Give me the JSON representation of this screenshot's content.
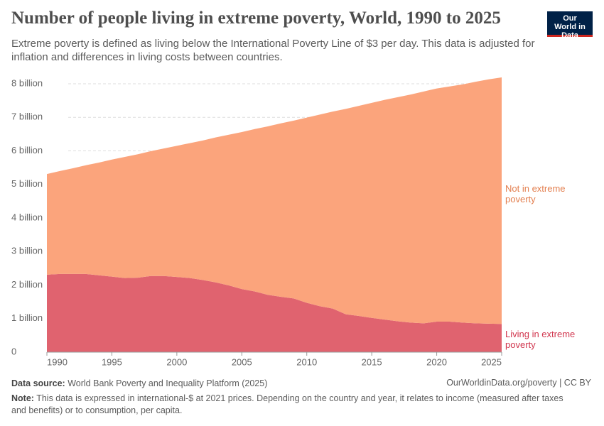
{
  "chart_data": {
    "type": "stacked_area",
    "title": "Number of people living in extreme poverty, World, 1990 to 2025",
    "subtitle": "Extreme poverty is defined as living below the International Poverty Line of $3 per day. This data is adjusted for inflation and differences in living costs between countries.",
    "x": [
      1990,
      1991,
      1992,
      1993,
      1994,
      1995,
      1996,
      1997,
      1998,
      1999,
      2000,
      2001,
      2002,
      2003,
      2004,
      2005,
      2006,
      2007,
      2008,
      2009,
      2010,
      2011,
      2012,
      2013,
      2014,
      2015,
      2016,
      2017,
      2018,
      2019,
      2020,
      2021,
      2022,
      2023,
      2024,
      2025
    ],
    "series": [
      {
        "name": "Living in extreme poverty",
        "color": "#e0636f",
        "label_color": "#d1374f",
        "values": [
          2310000000,
          2330000000,
          2330000000,
          2330000000,
          2290000000,
          2250000000,
          2210000000,
          2220000000,
          2270000000,
          2270000000,
          2240000000,
          2210000000,
          2150000000,
          2080000000,
          1990000000,
          1880000000,
          1810000000,
          1710000000,
          1650000000,
          1600000000,
          1470000000,
          1370000000,
          1300000000,
          1130000000,
          1080000000,
          1020000000,
          970000000,
          920000000,
          880000000,
          860000000,
          910000000,
          910000000,
          880000000,
          860000000,
          850000000,
          840000000
        ]
      },
      {
        "name": "Not in extreme poverty",
        "color": "#fba47c",
        "label_color": "#e37f4f",
        "values": [
          3000000000,
          3070000000,
          3150000000,
          3240000000,
          3360000000,
          3490000000,
          3610000000,
          3680000000,
          3720000000,
          3800000000,
          3910000000,
          4020000000,
          4160000000,
          4320000000,
          4490000000,
          4680000000,
          4840000000,
          5020000000,
          5170000000,
          5300000000,
          5520000000,
          5710000000,
          5870000000,
          6120000000,
          6260000000,
          6410000000,
          6550000000,
          6680000000,
          6800000000,
          6910000000,
          6950000000,
          7010000000,
          7100000000,
          7200000000,
          7280000000,
          7350000000
        ]
      }
    ],
    "xlim": [
      1990,
      2025
    ],
    "xticks": [
      1990,
      1995,
      2000,
      2005,
      2010,
      2015,
      2020,
      2025
    ],
    "ylim": [
      0,
      8200000000
    ],
    "yticks": [
      0,
      {
        "value": 1000000000,
        "label": "1 billion"
      },
      {
        "value": 2000000000,
        "label": "2 billion"
      },
      {
        "value": 3000000000,
        "label": "3 billion"
      },
      {
        "value": 4000000000,
        "label": "4 billion"
      },
      {
        "value": 5000000000,
        "label": "5 billion"
      },
      {
        "value": 6000000000,
        "label": "6 billion"
      },
      {
        "value": 7000000000,
        "label": "7 billion"
      },
      {
        "value": 8000000000,
        "label": "8 billion"
      }
    ],
    "grid": true
  },
  "logo": "Our World in Data",
  "footer": {
    "source_label": "Data source:",
    "source": "World Bank Poverty and Inequality Platform (2025)",
    "url": "OurWorldinData.org/poverty | CC BY",
    "note_label": "Note:",
    "note": "This data is expressed in international-$ at 2021 prices. Depending on the country and year, it relates to income (measured after taxes and benefits) or to consumption, per capita."
  }
}
